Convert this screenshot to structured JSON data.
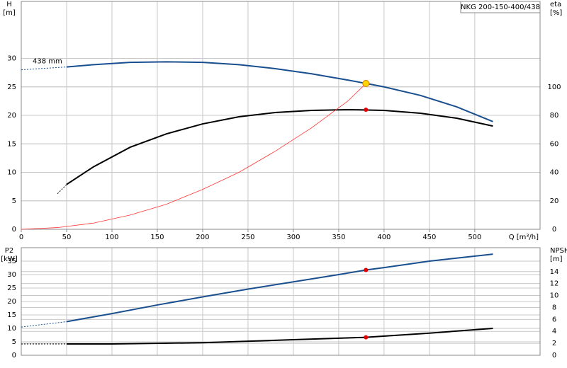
{
  "chart_data": [
    {
      "type": "line",
      "title": "NKG 200-150-400/438",
      "xlabel": "Q [m³/h]",
      "ylabel": "H",
      "yunit": "[m]",
      "y2label": "eta",
      "y2unit": "[%]",
      "annotation": "438 mm",
      "xlim": [
        0,
        572
      ],
      "xticks": [
        0,
        50,
        100,
        150,
        200,
        250,
        300,
        350,
        400,
        450,
        500
      ],
      "ylim": [
        0,
        40
      ],
      "yticks": [
        0,
        5,
        10,
        15,
        20,
        25,
        30
      ],
      "y2lim": [
        0,
        160
      ],
      "y2ticks": [
        0,
        20,
        40,
        60,
        80,
        100
      ],
      "grid": true,
      "series": [
        {
          "color": "#1a4f8f",
          "dashed": true,
          "axis": "y",
          "x": [
            0,
            50
          ],
          "values": [
            28.0,
            28.5
          ]
        },
        {
          "color": "#1a4f8f",
          "dashed": false,
          "axis": "y",
          "x": [
            50,
            80,
            120,
            160,
            200,
            240,
            280,
            320,
            360,
            380,
            400,
            440,
            480,
            520
          ],
          "values": [
            28.5,
            28.9,
            29.3,
            29.4,
            29.3,
            28.9,
            28.2,
            27.3,
            26.2,
            25.6,
            25.0,
            23.5,
            21.5,
            18.9
          ]
        },
        {
          "color": "#000000",
          "dashed": true,
          "axis": "y2",
          "x": [
            40,
            50
          ],
          "values": [
            25,
            31.5
          ]
        },
        {
          "color": "#000000",
          "dashed": false,
          "axis": "y2",
          "x": [
            50,
            80,
            120,
            160,
            200,
            240,
            280,
            320,
            360,
            400,
            440,
            480,
            520
          ],
          "values": [
            31.5,
            44,
            57.6,
            67,
            74,
            79,
            82,
            83.5,
            84,
            83.5,
            81.5,
            78,
            72.5
          ]
        },
        {
          "color": "#ff3333",
          "dashed": false,
          "thin": true,
          "axis": "y",
          "x": [
            0,
            40,
            80,
            120,
            160,
            200,
            240,
            280,
            320,
            360,
            380
          ],
          "values": [
            0,
            0.3,
            1.1,
            2.5,
            4.4,
            7,
            10,
            13.7,
            17.8,
            22.5,
            25.6
          ]
        }
      ],
      "points": [
        {
          "x": 380,
          "y": 25.6,
          "axis": "y",
          "color": "#ffd700"
        },
        {
          "x": 380,
          "y": 84,
          "axis": "y2",
          "color": "#e00000"
        }
      ]
    },
    {
      "type": "line",
      "ylabel": "P2",
      "yunit": "[kW]",
      "y2label": "NPSH",
      "y2unit": "[m]",
      "xlim": [
        0,
        572
      ],
      "ylim": [
        0,
        40
      ],
      "yticks": [
        0,
        5,
        10,
        15,
        20,
        25,
        30,
        35
      ],
      "y2lim": [
        0,
        18
      ],
      "y2ticks": [
        0,
        2,
        4,
        6,
        8,
        10,
        12,
        14
      ],
      "grid": true,
      "series": [
        {
          "color": "#1a4f8f",
          "dashed": true,
          "axis": "y",
          "x": [
            0,
            50
          ],
          "values": [
            10.5,
            12.5
          ]
        },
        {
          "color": "#1a4f8f",
          "dashed": false,
          "axis": "y",
          "x": [
            50,
            100,
            150,
            200,
            250,
            300,
            350,
            380,
            400,
            450,
            520
          ],
          "values": [
            12.5,
            15.5,
            18.7,
            21.7,
            24.6,
            27.3,
            30,
            31.7,
            32.6,
            35,
            37.6
          ]
        },
        {
          "color": "#000000",
          "dashed": true,
          "axis": "y2",
          "x": [
            0,
            50
          ],
          "values": [
            1.9,
            1.9
          ]
        },
        {
          "color": "#000000",
          "dashed": false,
          "axis": "y2",
          "x": [
            50,
            100,
            200,
            300,
            380,
            450,
            520
          ],
          "values": [
            1.9,
            1.9,
            2.1,
            2.6,
            3.0,
            3.7,
            4.5
          ]
        }
      ],
      "points": [
        {
          "x": 380,
          "y": 31.7,
          "axis": "y",
          "color": "#e00000"
        },
        {
          "x": 380,
          "y": 3.0,
          "axis": "y2",
          "color": "#e00000"
        }
      ]
    }
  ]
}
